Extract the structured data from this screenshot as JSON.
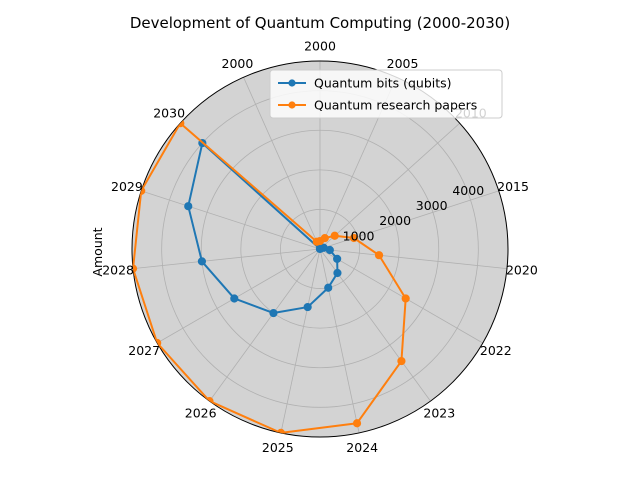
{
  "chart_data": {
    "type": "line",
    "projection": "polar",
    "title": "Development of Quantum Computing (2000-2030)",
    "ylabel": "Amount",
    "categories": [
      "2000",
      "2005",
      "2010",
      "2015",
      "2020",
      "2022",
      "2023",
      "2024",
      "2025",
      "2026",
      "2027",
      "2028",
      "2029",
      "2030",
      "2000"
    ],
    "series": [
      {
        "name": "Quantum bits (qubits)",
        "color": "#1f77b4",
        "values": [
          5,
          10,
          50,
          100,
          250,
          500,
          750,
          1000,
          1500,
          2000,
          2500,
          3000,
          3500,
          4000,
          5
        ]
      },
      {
        "name": "Quantum research papers",
        "color": "#ff7f0e",
        "values": [
          200,
          300,
          500,
          900,
          1500,
          2500,
          3500,
          4500,
          5500,
          6500,
          7500,
          8500,
          9500,
          10500,
          200
        ]
      }
    ],
    "rticks": [
      1000,
      2000,
      3000,
      4000
    ],
    "rlim": [
      0,
      4750
    ],
    "grid": true,
    "legend_position": "upper-right",
    "background": "#d3d3d3"
  }
}
